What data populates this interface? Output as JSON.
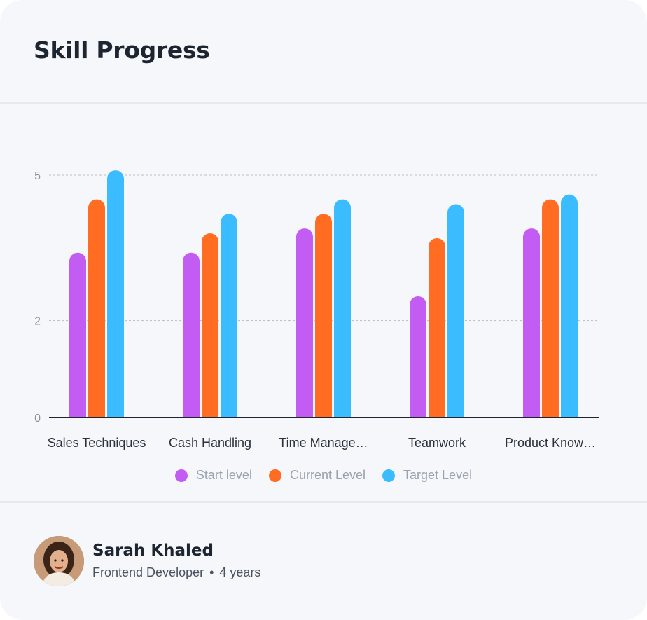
{
  "card": {
    "title": "Skill Progress"
  },
  "chart_data": {
    "type": "bar",
    "title": "",
    "categories": [
      "Sales Techniques",
      "Cash Handling",
      "Time Manage…",
      "Teamwork",
      "Product Know…"
    ],
    "series": [
      {
        "name": "Start level",
        "color": "#c35cf2",
        "values": [
          3.4,
          3.4,
          3.9,
          2.5,
          3.9
        ]
      },
      {
        "name": "Current Level",
        "color": "#ff6c22",
        "values": [
          4.5,
          3.8,
          4.2,
          3.7,
          4.5
        ]
      },
      {
        "name": "Target Level",
        "color": "#3bbcff",
        "values": [
          5.1,
          4.2,
          4.5,
          4.4,
          4.6
        ]
      }
    ],
    "y_ticks": [
      "0",
      "2",
      "5"
    ],
    "ylim": [
      0,
      5.4
    ],
    "grid": "dashed horizontal at 2 and 5",
    "legend": "bottom-center"
  },
  "profile": {
    "name": "Sarah Khaled",
    "role": "Frontend Developer",
    "separator": "•",
    "experience": "4 years"
  }
}
